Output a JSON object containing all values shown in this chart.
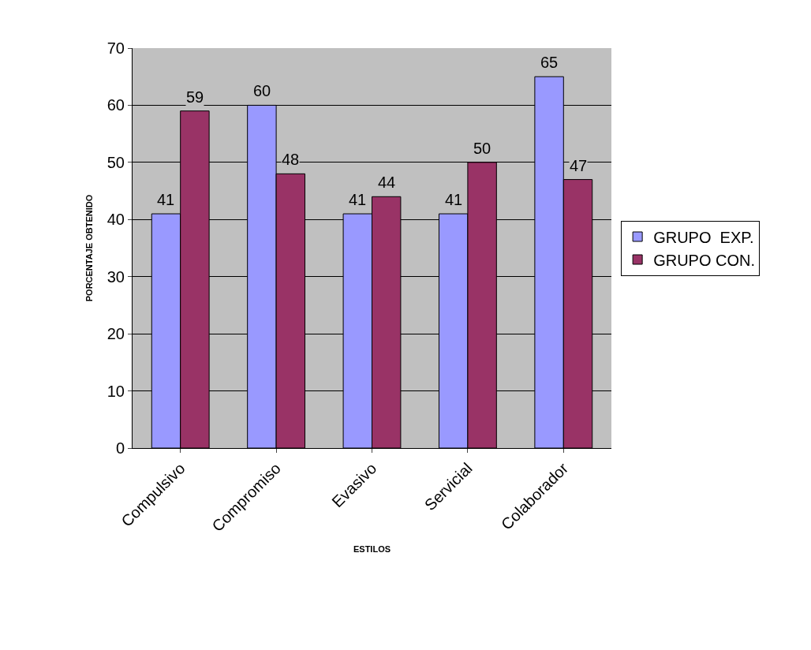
{
  "chart_data": {
    "type": "bar",
    "xlabel": "ESTILOS",
    "ylabel": "PORCENTAJE OBTENIDO",
    "categories": [
      "Compulsivo",
      "Compromiso",
      "Evasivo",
      "Servicial",
      "Colaborador"
    ],
    "series": [
      {
        "name": "GRUPO  EXP.",
        "color": "#9999ff",
        "values": [
          41,
          60,
          41,
          41,
          65
        ]
      },
      {
        "name": "GRUPO CON.",
        "color": "#993366",
        "values": [
          59,
          48,
          44,
          50,
          47
        ]
      }
    ],
    "ylim": [
      0,
      70
    ],
    "yticks": [
      0,
      10,
      20,
      30,
      40,
      50,
      60,
      70
    ],
    "grid": "y",
    "legend": "right",
    "data_labels": true
  }
}
